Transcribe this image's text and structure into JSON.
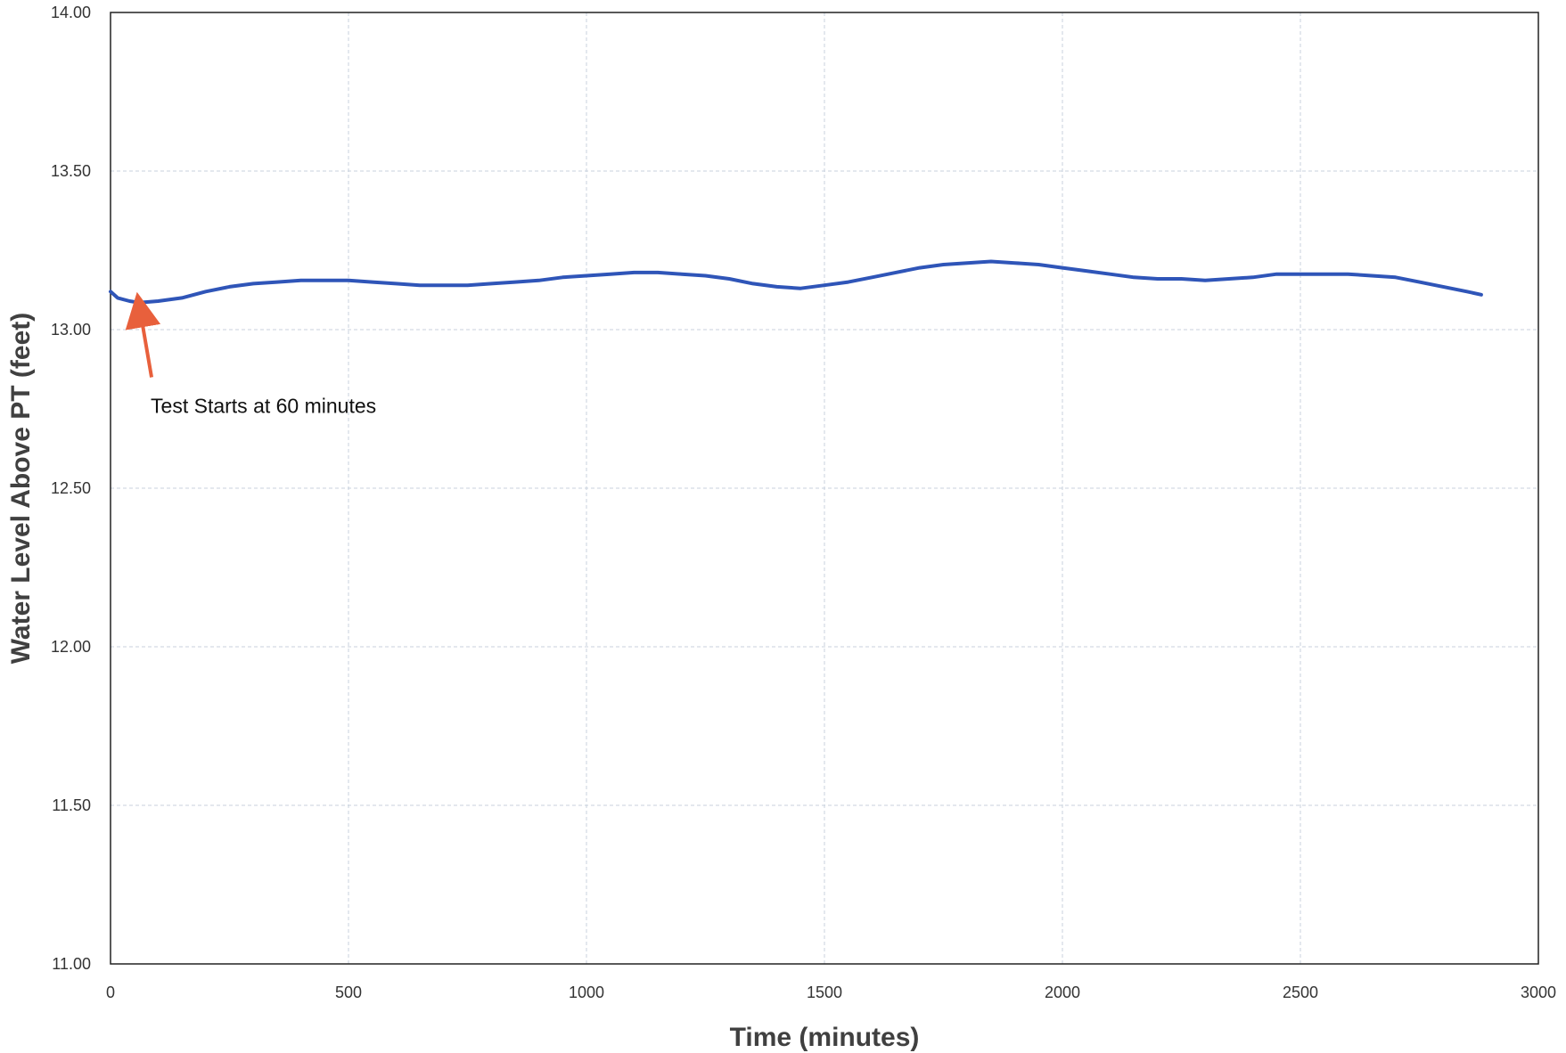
{
  "chart_data": {
    "type": "line",
    "title": "",
    "xlabel": "Time (minutes)",
    "ylabel": "Water Level Above PT (feet)",
    "xlim": [
      0,
      3000
    ],
    "ylim": [
      11.0,
      14.0
    ],
    "x_ticks": [
      "0",
      "500",
      "1000",
      "1500",
      "2000",
      "2500",
      "3000"
    ],
    "y_ticks": [
      "11.00",
      "11.50",
      "12.00",
      "12.50",
      "13.00",
      "13.50",
      "14.00"
    ],
    "grid": true,
    "legend": "none",
    "series": [
      {
        "color": "#2f55b8",
        "points": [
          [
            0,
            13.12
          ],
          [
            15,
            13.1
          ],
          [
            40,
            13.09
          ],
          [
            60,
            13.085
          ],
          [
            100,
            13.09
          ],
          [
            150,
            13.1
          ],
          [
            200,
            13.12
          ],
          [
            250,
            13.135
          ],
          [
            300,
            13.145
          ],
          [
            350,
            13.15
          ],
          [
            400,
            13.155
          ],
          [
            450,
            13.155
          ],
          [
            500,
            13.155
          ],
          [
            550,
            13.15
          ],
          [
            600,
            13.145
          ],
          [
            650,
            13.14
          ],
          [
            700,
            13.14
          ],
          [
            750,
            13.14
          ],
          [
            800,
            13.145
          ],
          [
            850,
            13.15
          ],
          [
            900,
            13.155
          ],
          [
            950,
            13.165
          ],
          [
            1000,
            13.17
          ],
          [
            1050,
            13.175
          ],
          [
            1100,
            13.18
          ],
          [
            1150,
            13.18
          ],
          [
            1200,
            13.175
          ],
          [
            1250,
            13.17
          ],
          [
            1300,
            13.16
          ],
          [
            1350,
            13.145
          ],
          [
            1400,
            13.135
          ],
          [
            1450,
            13.13
          ],
          [
            1500,
            13.14
          ],
          [
            1550,
            13.15
          ],
          [
            1600,
            13.165
          ],
          [
            1650,
            13.18
          ],
          [
            1700,
            13.195
          ],
          [
            1750,
            13.205
          ],
          [
            1800,
            13.21
          ],
          [
            1850,
            13.215
          ],
          [
            1900,
            13.21
          ],
          [
            1950,
            13.205
          ],
          [
            2000,
            13.195
          ],
          [
            2050,
            13.185
          ],
          [
            2100,
            13.175
          ],
          [
            2150,
            13.165
          ],
          [
            2200,
            13.16
          ],
          [
            2250,
            13.16
          ],
          [
            2300,
            13.155
          ],
          [
            2350,
            13.16
          ],
          [
            2400,
            13.165
          ],
          [
            2450,
            13.175
          ],
          [
            2500,
            13.175
          ],
          [
            2550,
            13.175
          ],
          [
            2600,
            13.175
          ],
          [
            2650,
            13.17
          ],
          [
            2700,
            13.165
          ],
          [
            2750,
            13.15
          ],
          [
            2800,
            13.135
          ],
          [
            2850,
            13.12
          ],
          [
            2880,
            13.11
          ]
        ]
      }
    ],
    "annotations": [
      {
        "text": "Test Starts at 60 minutes",
        "x": 60,
        "y": 13.08,
        "arrow_color": "#e8603c"
      }
    ]
  }
}
